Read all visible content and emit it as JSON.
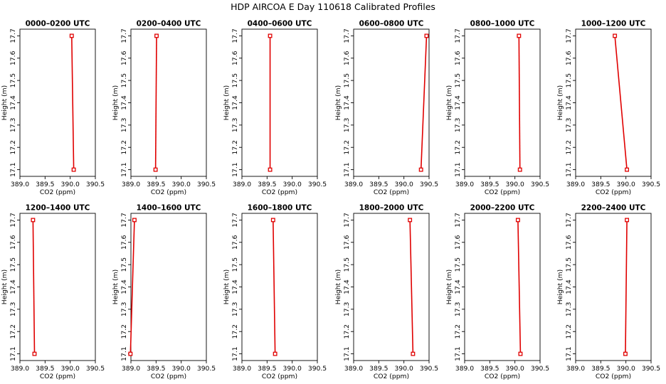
{
  "figure_title": "HDP AIRCOA E  Day 110618  Calibrated Profiles",
  "colors": {
    "line": "#e00000",
    "axes": "#000000",
    "background": "#ffffff"
  },
  "chart_data": [
    {
      "type": "line",
      "title": "0000–0200 UTC",
      "xlabel": "CO2 (ppm)",
      "ylabel": "Height (m)",
      "xlim": [
        389.0,
        390.5
      ],
      "ylim": [
        17.07,
        17.73
      ],
      "xticks": [
        "389.0",
        "389.5",
        "390.0",
        "390.5"
      ],
      "yticks": [
        "17.1",
        "17.2",
        "17.3",
        "17.4",
        "17.5",
        "17.6",
        "17.7"
      ],
      "points": [
        {
          "x": 390.07,
          "y": 17.1
        },
        {
          "x": 390.03,
          "y": 17.7
        }
      ],
      "grid": false
    },
    {
      "type": "line",
      "title": "0200–0400 UTC",
      "xlabel": "CO2 (ppm)",
      "ylabel": "Height (m)",
      "xlim": [
        389.0,
        390.5
      ],
      "ylim": [
        17.07,
        17.73
      ],
      "xticks": [
        "389.0",
        "389.5",
        "390.0",
        "390.5"
      ],
      "yticks": [
        "17.1",
        "17.2",
        "17.3",
        "17.4",
        "17.5",
        "17.6",
        "17.7"
      ],
      "points": [
        {
          "x": 389.49,
          "y": 17.1
        },
        {
          "x": 389.51,
          "y": 17.7
        }
      ],
      "grid": false
    },
    {
      "type": "line",
      "title": "0400–0600 UTC",
      "xlabel": "CO2 (ppm)",
      "ylabel": "Height (m)",
      "xlim": [
        389.0,
        390.5
      ],
      "ylim": [
        17.07,
        17.73
      ],
      "xticks": [
        "389.0",
        "389.5",
        "390.0",
        "390.5"
      ],
      "yticks": [
        "17.1",
        "17.2",
        "17.3",
        "17.4",
        "17.5",
        "17.6",
        "17.7"
      ],
      "points": [
        {
          "x": 389.56,
          "y": 17.1
        },
        {
          "x": 389.56,
          "y": 17.7
        }
      ],
      "grid": false
    },
    {
      "type": "line",
      "title": "0600–0800 UTC",
      "xlabel": "CO2 (ppm)",
      "ylabel": "Height (m)",
      "xlim": [
        389.0,
        390.5
      ],
      "ylim": [
        17.07,
        17.73
      ],
      "xticks": [
        "389.0",
        "389.5",
        "390.0",
        "390.5"
      ],
      "yticks": [
        "17.1",
        "17.2",
        "17.3",
        "17.4",
        "17.5",
        "17.6",
        "17.7"
      ],
      "points": [
        {
          "x": 390.34,
          "y": 17.1
        },
        {
          "x": 390.45,
          "y": 17.7
        }
      ],
      "grid": false
    },
    {
      "type": "line",
      "title": "0800–1000 UTC",
      "xlabel": "CO2 (ppm)",
      "ylabel": "Height (m)",
      "xlim": [
        389.0,
        390.5
      ],
      "ylim": [
        17.07,
        17.73
      ],
      "xticks": [
        "389.0",
        "389.5",
        "390.0",
        "390.5"
      ],
      "yticks": [
        "17.1",
        "17.2",
        "17.3",
        "17.4",
        "17.5",
        "17.6",
        "17.7"
      ],
      "points": [
        {
          "x": 390.1,
          "y": 17.1
        },
        {
          "x": 390.08,
          "y": 17.7
        }
      ],
      "grid": false
    },
    {
      "type": "line",
      "title": "1000–1200 UTC",
      "xlabel": "CO2 (ppm)",
      "ylabel": "Height (m)",
      "xlim": [
        389.0,
        390.5
      ],
      "ylim": [
        17.07,
        17.73
      ],
      "xticks": [
        "389.0",
        "389.5",
        "390.0",
        "390.5"
      ],
      "yticks": [
        "17.1",
        "17.2",
        "17.3",
        "17.4",
        "17.5",
        "17.6",
        "17.7"
      ],
      "points": [
        {
          "x": 390.02,
          "y": 17.1
        },
        {
          "x": 389.78,
          "y": 17.7
        }
      ],
      "grid": false
    },
    {
      "type": "line",
      "title": "1200–1400 UTC",
      "xlabel": "CO2 (ppm)",
      "ylabel": "Height (m)",
      "xlim": [
        389.0,
        390.5
      ],
      "ylim": [
        17.07,
        17.73
      ],
      "xticks": [
        "389.0",
        "389.5",
        "390.0",
        "390.5"
      ],
      "yticks": [
        "17.1",
        "17.2",
        "17.3",
        "17.4",
        "17.5",
        "17.6",
        "17.7"
      ],
      "points": [
        {
          "x": 389.29,
          "y": 17.1
        },
        {
          "x": 389.26,
          "y": 17.7
        }
      ],
      "grid": false
    },
    {
      "type": "line",
      "title": "1400–1600 UTC",
      "xlabel": "CO2 (ppm)",
      "ylabel": "Height (m)",
      "xlim": [
        389.0,
        390.5
      ],
      "ylim": [
        17.07,
        17.73
      ],
      "xticks": [
        "389.0",
        "389.5",
        "390.0",
        "390.5"
      ],
      "yticks": [
        "17.1",
        "17.2",
        "17.3",
        "17.4",
        "17.5",
        "17.6",
        "17.7"
      ],
      "points": [
        {
          "x": 388.99,
          "y": 17.1
        },
        {
          "x": 389.07,
          "y": 17.7
        }
      ],
      "grid": false
    },
    {
      "type": "line",
      "title": "1600–1800 UTC",
      "xlabel": "CO2 (ppm)",
      "ylabel": "Height (m)",
      "xlim": [
        389.0,
        390.5
      ],
      "ylim": [
        17.07,
        17.73
      ],
      "xticks": [
        "389.0",
        "389.5",
        "390.0",
        "390.5"
      ],
      "yticks": [
        "17.1",
        "17.2",
        "17.3",
        "17.4",
        "17.5",
        "17.6",
        "17.7"
      ],
      "points": [
        {
          "x": 389.66,
          "y": 17.1
        },
        {
          "x": 389.62,
          "y": 17.7
        }
      ],
      "grid": false
    },
    {
      "type": "line",
      "title": "1800–2000 UTC",
      "xlabel": "CO2 (ppm)",
      "ylabel": "Height (m)",
      "xlim": [
        389.0,
        390.5
      ],
      "ylim": [
        17.07,
        17.73
      ],
      "xticks": [
        "389.0",
        "389.5",
        "390.0",
        "390.5"
      ],
      "yticks": [
        "17.1",
        "17.2",
        "17.3",
        "17.4",
        "17.5",
        "17.6",
        "17.7"
      ],
      "points": [
        {
          "x": 390.18,
          "y": 17.1
        },
        {
          "x": 390.12,
          "y": 17.7
        }
      ],
      "grid": false
    },
    {
      "type": "line",
      "title": "2000–2200 UTC",
      "xlabel": "CO2 (ppm)",
      "ylabel": "Height (m)",
      "xlim": [
        389.0,
        390.5
      ],
      "ylim": [
        17.07,
        17.73
      ],
      "xticks": [
        "389.0",
        "389.5",
        "390.0",
        "390.5"
      ],
      "yticks": [
        "17.1",
        "17.2",
        "17.3",
        "17.4",
        "17.5",
        "17.6",
        "17.7"
      ],
      "points": [
        {
          "x": 390.11,
          "y": 17.1
        },
        {
          "x": 390.06,
          "y": 17.7
        }
      ],
      "grid": false
    },
    {
      "type": "line",
      "title": "2200–2400 UTC",
      "xlabel": "CO2 (ppm)",
      "ylabel": "Height (m)",
      "xlim": [
        389.0,
        390.5
      ],
      "ylim": [
        17.07,
        17.73
      ],
      "xticks": [
        "389.0",
        "389.5",
        "390.0",
        "390.5"
      ],
      "yticks": [
        "17.1",
        "17.2",
        "17.3",
        "17.4",
        "17.5",
        "17.6",
        "17.7"
      ],
      "points": [
        {
          "x": 389.99,
          "y": 17.1
        },
        {
          "x": 390.02,
          "y": 17.7
        }
      ],
      "grid": false
    }
  ]
}
